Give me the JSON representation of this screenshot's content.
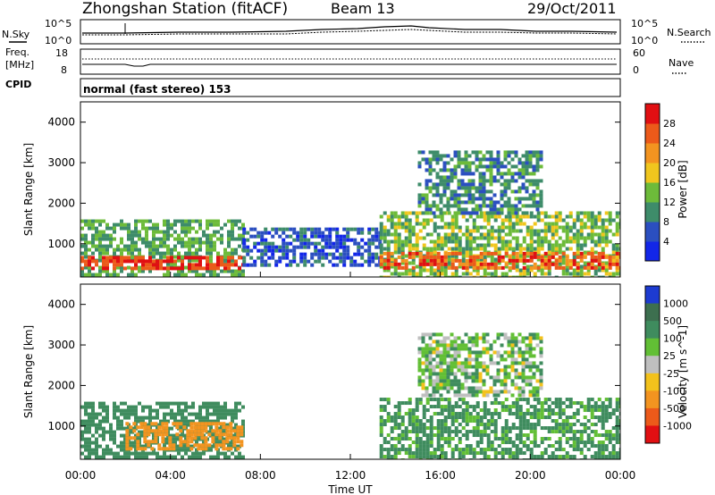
{
  "header": {
    "station": "Zhongshan Station (fitACF)",
    "beam": "Beam 13",
    "date": "29/Oct/2011"
  },
  "noise_panel": {
    "left_label": "N.Sky",
    "right_label": "N.Search",
    "left_ticks": [
      "10^5",
      "10^0"
    ],
    "right_ticks": [
      "10^5",
      "10^0"
    ]
  },
  "freq_panel": {
    "left_label_1": "Freq.",
    "left_label_2": "[MHz]",
    "cpid_label": "CPID",
    "right_label": "Nave",
    "left_ticks": [
      "18",
      "8"
    ],
    "right_ticks": [
      "60",
      "0"
    ]
  },
  "cpid_panel": {
    "text": "normal (fast stereo) 153"
  },
  "chart_data": [
    {
      "type": "heatmap",
      "name": "power",
      "ylabel": "Slant Range [km]",
      "xlabel": "",
      "ylim": [
        180,
        4500
      ],
      "y_ticks": [
        1000,
        2000,
        3000,
        4000
      ],
      "x_ticks": [
        "00:00",
        "04:00",
        "08:00",
        "12:00",
        "16:00",
        "20:00",
        "00:00"
      ],
      "colorbar": {
        "title": "Power [dB]",
        "tick_labels": [
          "4",
          "8",
          "12",
          "16",
          "20",
          "24",
          "28"
        ],
        "colors": [
          "#1226e8",
          "#2b4fc0",
          "#3e8c6a",
          "#6dbb3a",
          "#f0c61e",
          "#f39420",
          "#ec5a1a",
          "#e10f12"
        ]
      },
      "regions": [
        {
          "t0": 0.0,
          "t1": 7.2,
          "r0": 180,
          "r1": 1600,
          "value": 12
        },
        {
          "t0": 0.0,
          "t1": 7.2,
          "r0": 400,
          "r1": 700,
          "value": 28
        },
        {
          "t0": 7.2,
          "t1": 13.3,
          "r0": 500,
          "r1": 1400,
          "value": 6
        },
        {
          "t0": 13.3,
          "t1": 24.0,
          "r0": 180,
          "r1": 1800,
          "value": 14
        },
        {
          "t0": 13.3,
          "t1": 24.0,
          "r0": 400,
          "r1": 800,
          "value": 26
        },
        {
          "t0": 15.0,
          "t1": 20.5,
          "r0": 1800,
          "r1": 3300,
          "value": 10
        }
      ]
    },
    {
      "type": "heatmap",
      "name": "velocity",
      "ylabel": "Slant Range [km]",
      "xlabel": "Time UT",
      "ylim": [
        180,
        4500
      ],
      "y_ticks": [
        1000,
        2000,
        3000,
        4000
      ],
      "x_ticks": [
        "00:00",
        "04:00",
        "08:00",
        "12:00",
        "16:00",
        "20:00",
        "00:00"
      ],
      "colorbar": {
        "title": "Velocity [m s^-1]",
        "tick_labels": [
          "1000",
          "500",
          "100",
          "25",
          "-25",
          "-100",
          "-500",
          "-1000"
        ],
        "colors": [
          "#1d3bd1",
          "#3d6f4f",
          "#3f8c5e",
          "#62bf35",
          "#bfbfbf",
          "#f3c21c",
          "#f39420",
          "#ec5a1a",
          "#e10f12"
        ]
      },
      "regions": [
        {
          "t0": 0.0,
          "t1": 7.2,
          "r0": 180,
          "r1": 1600,
          "value": 300
        },
        {
          "t0": 2.0,
          "t1": 7.2,
          "r0": 400,
          "r1": 1100,
          "value": -200
        },
        {
          "t0": 13.3,
          "t1": 24.0,
          "r0": 180,
          "r1": 1700,
          "value": 150
        },
        {
          "t0": 15.0,
          "t1": 20.5,
          "r0": 1800,
          "r1": 3300,
          "value": 50
        }
      ]
    }
  ]
}
